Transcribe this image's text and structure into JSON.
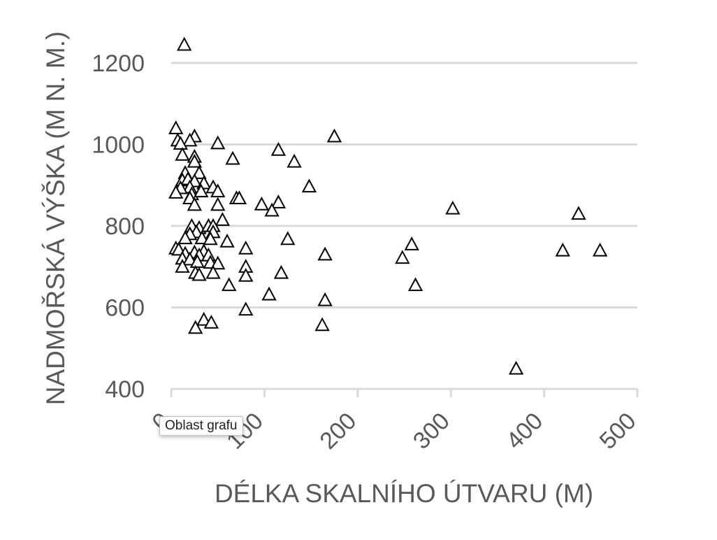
{
  "chart_data": {
    "type": "scatter",
    "xlabel": "DÉLKA SKALNÍHO ÚTVARU (M)",
    "ylabel": "NADMOŘSKÁ VÝŠKA (M N. M.)",
    "xlim": [
      0,
      500
    ],
    "ylim": [
      400,
      1200
    ],
    "xticks": [
      "0",
      "100",
      "200",
      "300",
      "400",
      "500"
    ],
    "yticks": [
      "400",
      "600",
      "800",
      "1000",
      "1200"
    ],
    "grid": "horizontal",
    "marker": "triangle-open",
    "points": [
      [
        14,
        1245
      ],
      [
        5,
        1040
      ],
      [
        25,
        1020
      ],
      [
        7,
        1010
      ],
      [
        20,
        1010
      ],
      [
        10,
        1002
      ],
      [
        50,
        1003
      ],
      [
        175,
        1020
      ],
      [
        115,
        987
      ],
      [
        66,
        965
      ],
      [
        132,
        958
      ],
      [
        12,
        975
      ],
      [
        25,
        970
      ],
      [
        25,
        958
      ],
      [
        15,
        930
      ],
      [
        30,
        930
      ],
      [
        12,
        912
      ],
      [
        18,
        915
      ],
      [
        25,
        910
      ],
      [
        35,
        905
      ],
      [
        20,
        895
      ],
      [
        10,
        893
      ],
      [
        45,
        895
      ],
      [
        148,
        897
      ],
      [
        5,
        882
      ],
      [
        22,
        878
      ],
      [
        32,
        885
      ],
      [
        50,
        885
      ],
      [
        20,
        868
      ],
      [
        70,
        868
      ],
      [
        73,
        868
      ],
      [
        25,
        852
      ],
      [
        50,
        852
      ],
      [
        97,
        853
      ],
      [
        115,
        858
      ],
      [
        108,
        838
      ],
      [
        302,
        843
      ],
      [
        437,
        830
      ],
      [
        55,
        815
      ],
      [
        22,
        800
      ],
      [
        30,
        795
      ],
      [
        40,
        800
      ],
      [
        45,
        800
      ],
      [
        27,
        785
      ],
      [
        45,
        785
      ],
      [
        20,
        780
      ],
      [
        15,
        770
      ],
      [
        33,
        770
      ],
      [
        42,
        768
      ],
      [
        125,
        768
      ],
      [
        60,
        762
      ],
      [
        258,
        755
      ],
      [
        5,
        745
      ],
      [
        8,
        742
      ],
      [
        35,
        738
      ],
      [
        15,
        732
      ],
      [
        25,
        735
      ],
      [
        30,
        728
      ],
      [
        40,
        728
      ],
      [
        80,
        745
      ],
      [
        165,
        730
      ],
      [
        248,
        722
      ],
      [
        420,
        740
      ],
      [
        460,
        740
      ],
      [
        12,
        720
      ],
      [
        20,
        718
      ],
      [
        28,
        712
      ],
      [
        42,
        710
      ],
      [
        50,
        708
      ],
      [
        12,
        700
      ],
      [
        80,
        700
      ],
      [
        26,
        685
      ],
      [
        30,
        680
      ],
      [
        45,
        685
      ],
      [
        80,
        678
      ],
      [
        118,
        685
      ],
      [
        62,
        655
      ],
      [
        262,
        655
      ],
      [
        105,
        632
      ],
      [
        165,
        618
      ],
      [
        80,
        595
      ],
      [
        35,
        570
      ],
      [
        43,
        563
      ],
      [
        162,
        557
      ],
      [
        26,
        550
      ],
      [
        370,
        450
      ]
    ]
  },
  "tooltip": {
    "text": "Oblast grafu"
  }
}
